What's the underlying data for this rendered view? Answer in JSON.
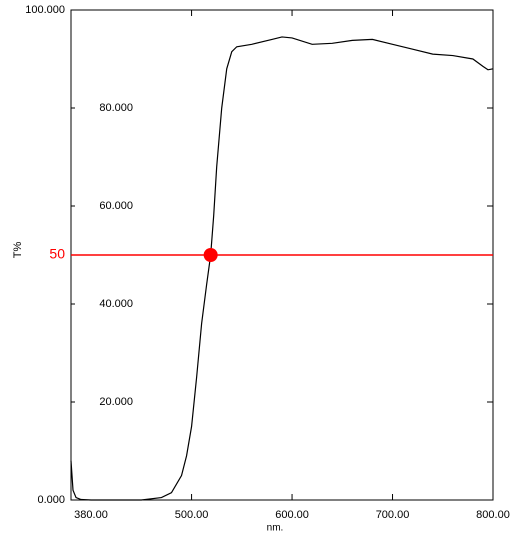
{
  "chart_data": {
    "type": "line",
    "xlabel": "nm.",
    "ylabel": "T%",
    "x": [
      380,
      382,
      385,
      390,
      400,
      450,
      470,
      480,
      490,
      495,
      500,
      505,
      510,
      515,
      519,
      522,
      525,
      530,
      535,
      540,
      545,
      560,
      580,
      590,
      600,
      620,
      640,
      660,
      680,
      700,
      720,
      740,
      760,
      780,
      790,
      795,
      800
    ],
    "series": [
      {
        "color": "#000000",
        "values": [
          8,
          2,
          0.5,
          0.1,
          0,
          0,
          0.5,
          1.5,
          5,
          9,
          15,
          25,
          36,
          44,
          50,
          58,
          68,
          80,
          88,
          91.5,
          92.5,
          93,
          94,
          94.5,
          94.3,
          93,
          93.2,
          93.8,
          94,
          93,
          92,
          91,
          90.7,
          90,
          88.5,
          87.8,
          88
        ]
      }
    ],
    "xlim": [
      380,
      800
    ],
    "ylim": [
      0,
      100
    ],
    "xticks": [
      {
        "value": 380,
        "label": "380.00"
      },
      {
        "value": 500,
        "label": "500.00"
      },
      {
        "value": 600,
        "label": "600.00"
      },
      {
        "value": 700,
        "label": "700.00"
      },
      {
        "value": 800,
        "label": "800.00"
      }
    ],
    "yticks": [
      {
        "value": 0,
        "label": "0.000"
      },
      {
        "value": 20,
        "label": "20.000"
      },
      {
        "value": 40,
        "label": "40.000"
      },
      {
        "value": 60,
        "label": "60.000"
      },
      {
        "value": 80,
        "label": "80.000"
      },
      {
        "value": 100,
        "label": "100.000"
      }
    ],
    "hline": {
      "value": 50,
      "color": "#ff0000"
    },
    "marker": {
      "x": 519,
      "y": 50,
      "color": "#ff0000"
    }
  }
}
